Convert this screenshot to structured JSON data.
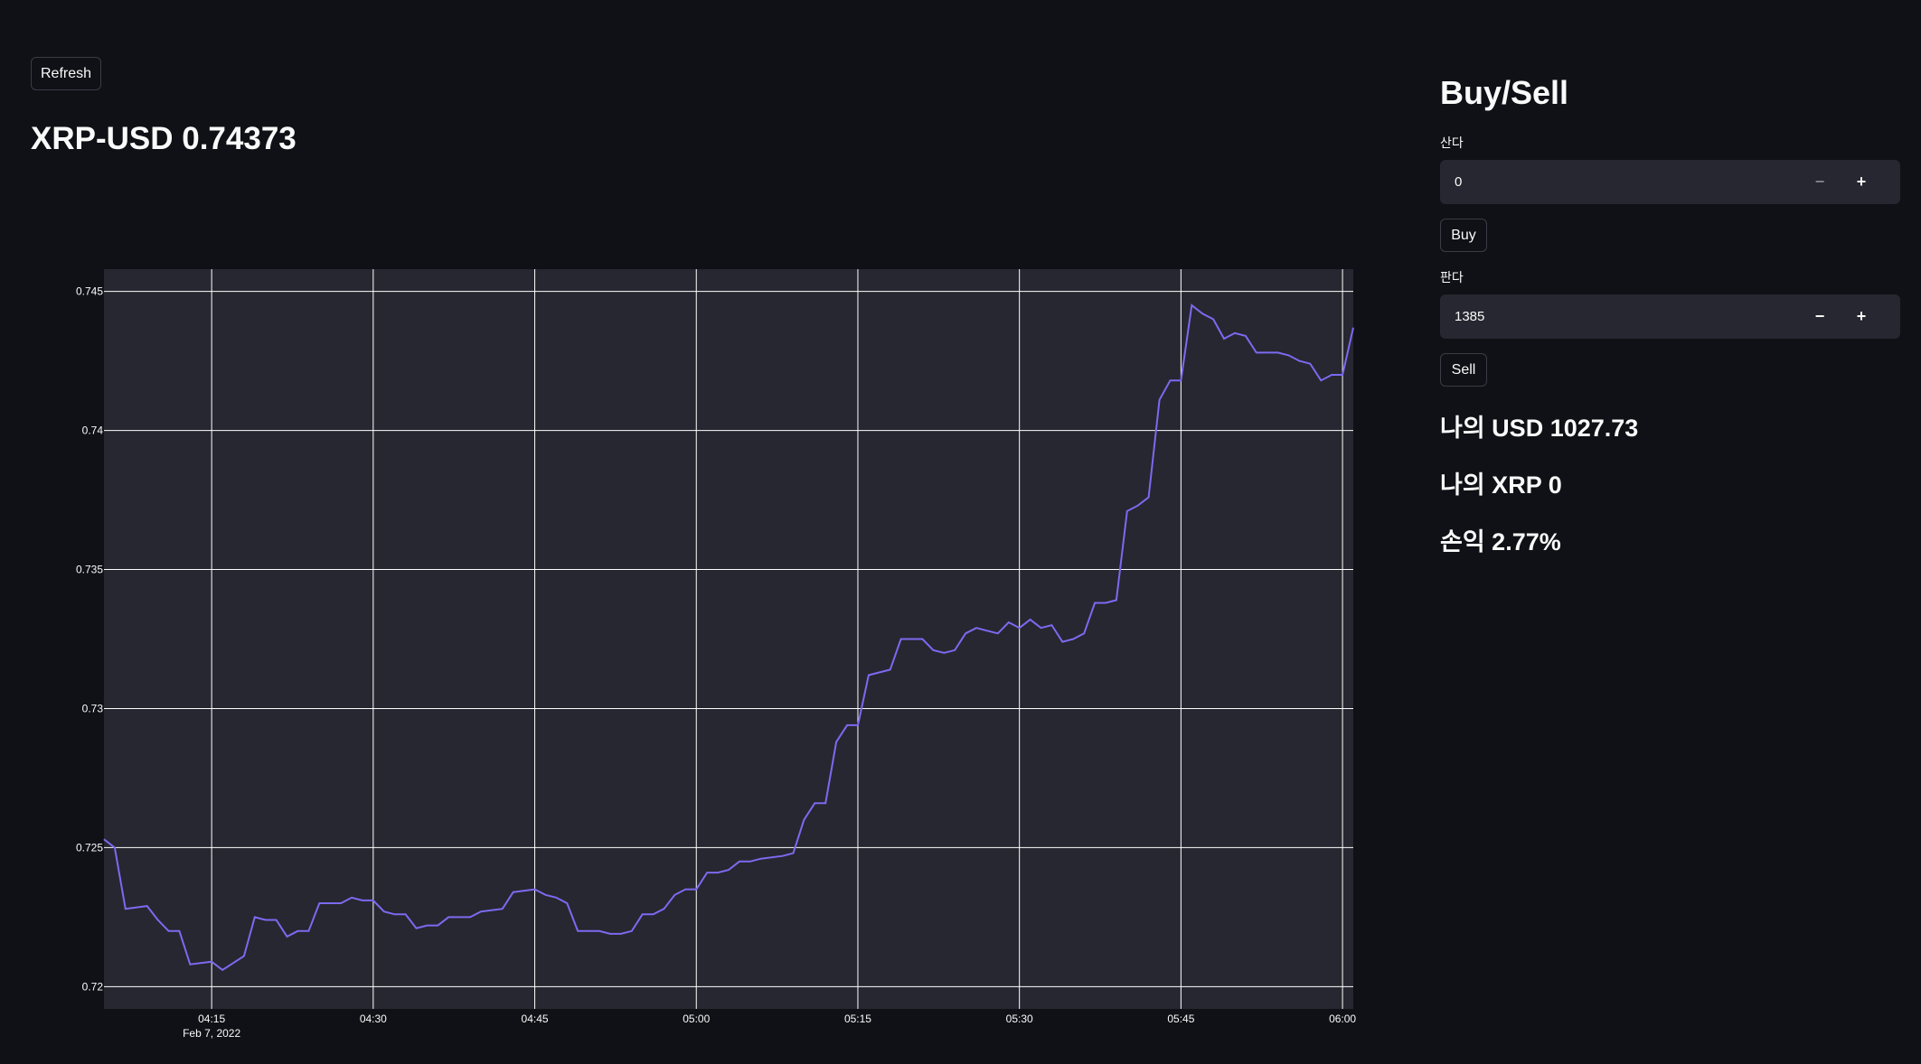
{
  "refresh_label": "Refresh",
  "price_title": "XRP-USD 0.74373",
  "side": {
    "title": "Buy/Sell",
    "buy_input_label": "산다",
    "buy_input_value": "0",
    "buy_button": "Buy",
    "sell_input_label": "판다",
    "sell_input_value": "1385",
    "sell_button": "Sell",
    "stepper_minus": "−",
    "stepper_plus": "+",
    "my_usd": "나의 USD 1027.73",
    "my_xrp": "나의 XRP 0",
    "pnl": "손익 2.77%"
  },
  "colors": {
    "line": "#7b6af0",
    "plot_bg": "#262730",
    "grid": "#ffffff"
  },
  "chart_data": {
    "type": "line",
    "xlabel": "",
    "ylabel": "",
    "x_ticks": [
      "04:15",
      "04:30",
      "04:45",
      "05:00",
      "05:15",
      "05:30",
      "05:45",
      "06:00"
    ],
    "x_date_label": "Feb 7, 2022",
    "x_range": [
      "04:05",
      "06:01"
    ],
    "y_ticks": [
      "0.72",
      "0.725",
      "0.73",
      "0.735",
      "0.74",
      "0.745"
    ],
    "ylim": [
      0.7192,
      0.7458
    ],
    "series": [
      {
        "values": [
          [
            "04:05",
            0.7253
          ],
          [
            "04:06",
            0.725
          ],
          [
            "04:07",
            0.7228
          ],
          [
            "04:09",
            0.7229
          ],
          [
            "04:10",
            0.7224
          ],
          [
            "04:11",
            0.722
          ],
          [
            "04:12",
            0.722
          ],
          [
            "04:13",
            0.7208
          ],
          [
            "04:15",
            0.7209
          ],
          [
            "04:16",
            0.7206
          ],
          [
            "04:18",
            0.7211
          ],
          [
            "04:19",
            0.7225
          ],
          [
            "04:20",
            0.7224
          ],
          [
            "04:21",
            0.7224
          ],
          [
            "04:22",
            0.7218
          ],
          [
            "04:23",
            0.722
          ],
          [
            "04:24",
            0.722
          ],
          [
            "04:25",
            0.723
          ],
          [
            "04:27",
            0.723
          ],
          [
            "04:28",
            0.7232
          ],
          [
            "04:29",
            0.7231
          ],
          [
            "04:30",
            0.7231
          ],
          [
            "04:31",
            0.7227
          ],
          [
            "04:32",
            0.7226
          ],
          [
            "04:33",
            0.7226
          ],
          [
            "04:34",
            0.7221
          ],
          [
            "04:35",
            0.7222
          ],
          [
            "04:36",
            0.7222
          ],
          [
            "04:37",
            0.7225
          ],
          [
            "04:38",
            0.7225
          ],
          [
            "04:39",
            0.7225
          ],
          [
            "04:40",
            0.7227
          ],
          [
            "04:42",
            0.7228
          ],
          [
            "04:43",
            0.7234
          ],
          [
            "04:45",
            0.7235
          ],
          [
            "04:46",
            0.7233
          ],
          [
            "04:47",
            0.7232
          ],
          [
            "04:48",
            0.723
          ],
          [
            "04:49",
            0.722
          ],
          [
            "04:50",
            0.722
          ],
          [
            "04:51",
            0.722
          ],
          [
            "04:52",
            0.7219
          ],
          [
            "04:53",
            0.7219
          ],
          [
            "04:54",
            0.722
          ],
          [
            "04:55",
            0.7226
          ],
          [
            "04:56",
            0.7226
          ],
          [
            "04:57",
            0.7228
          ],
          [
            "04:58",
            0.7233
          ],
          [
            "04:59",
            0.7235
          ],
          [
            "05:00",
            0.7235
          ],
          [
            "05:01",
            0.7241
          ],
          [
            "05:02",
            0.7241
          ],
          [
            "05:03",
            0.7242
          ],
          [
            "05:04",
            0.7245
          ],
          [
            "05:05",
            0.7245
          ],
          [
            "05:06",
            0.7246
          ],
          [
            "05:08",
            0.7247
          ],
          [
            "05:09",
            0.7248
          ],
          [
            "05:10",
            0.726
          ],
          [
            "05:11",
            0.7266
          ],
          [
            "05:12",
            0.7266
          ],
          [
            "05:13",
            0.7288
          ],
          [
            "05:14",
            0.7294
          ],
          [
            "05:15",
            0.7294
          ],
          [
            "05:16",
            0.7312
          ],
          [
            "05:18",
            0.7314
          ],
          [
            "05:19",
            0.7325
          ],
          [
            "05:20",
            0.7325
          ],
          [
            "05:21",
            0.7325
          ],
          [
            "05:22",
            0.7321
          ],
          [
            "05:23",
            0.732
          ],
          [
            "05:24",
            0.7321
          ],
          [
            "05:25",
            0.7327
          ],
          [
            "05:26",
            0.7329
          ],
          [
            "05:27",
            0.7328
          ],
          [
            "05:28",
            0.7327
          ],
          [
            "05:29",
            0.7331
          ],
          [
            "05:30",
            0.7329
          ],
          [
            "05:31",
            0.7332
          ],
          [
            "05:32",
            0.7329
          ],
          [
            "05:33",
            0.733
          ],
          [
            "05:34",
            0.7324
          ],
          [
            "05:35",
            0.7325
          ],
          [
            "05:36",
            0.7327
          ],
          [
            "05:37",
            0.7338
          ],
          [
            "05:38",
            0.7338
          ],
          [
            "05:39",
            0.7339
          ],
          [
            "05:40",
            0.7371
          ],
          [
            "05:41",
            0.7373
          ],
          [
            "05:42",
            0.7376
          ],
          [
            "05:43",
            0.7411
          ],
          [
            "05:44",
            0.7418
          ],
          [
            "05:45",
            0.7418
          ],
          [
            "05:46",
            0.7445
          ],
          [
            "05:47",
            0.7442
          ],
          [
            "05:48",
            0.744
          ],
          [
            "05:49",
            0.7433
          ],
          [
            "05:50",
            0.7435
          ],
          [
            "05:51",
            0.7434
          ],
          [
            "05:52",
            0.7428
          ],
          [
            "05:53",
            0.7428
          ],
          [
            "05:54",
            0.7428
          ],
          [
            "05:55",
            0.7427
          ],
          [
            "05:56",
            0.7425
          ],
          [
            "05:57",
            0.7424
          ],
          [
            "05:58",
            0.7418
          ],
          [
            "05:59",
            0.742
          ],
          [
            "06:00",
            0.742
          ],
          [
            "06:01",
            0.7437
          ]
        ]
      }
    ],
    "grid": true
  }
}
